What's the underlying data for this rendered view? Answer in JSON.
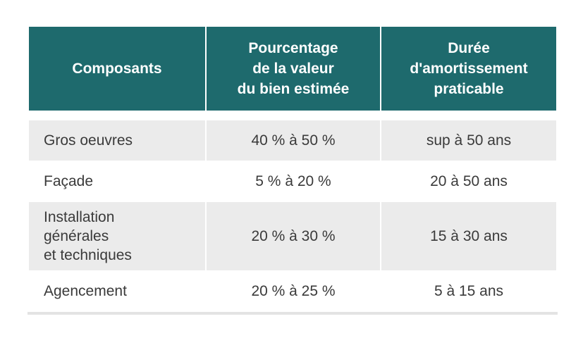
{
  "table": {
    "headers": [
      "Composants",
      "Pourcentage\nde la valeur\ndu bien estimée",
      "Durée\nd'amortissement\npraticable"
    ],
    "rows": [
      {
        "composant": "Gros oeuvres",
        "pourcentage": "40 % à 50 %",
        "duree": "sup à 50 ans"
      },
      {
        "composant": "Façade",
        "pourcentage": "5 % à 20 %",
        "duree": "20 à 50 ans"
      },
      {
        "composant": "Installation\ngénérales\net techniques",
        "pourcentage": "20 % à 30 %",
        "duree": "15 à 30 ans"
      },
      {
        "composant": "Agencement",
        "pourcentage": "20 % à 25 %",
        "duree": "5 à 15 ans"
      }
    ]
  },
  "colors": {
    "header_bg": "#1e6a6d",
    "header_text": "#ffffff",
    "row_grey": "#ebebeb",
    "row_white": "#ffffff",
    "body_text": "#3a3a3a"
  }
}
